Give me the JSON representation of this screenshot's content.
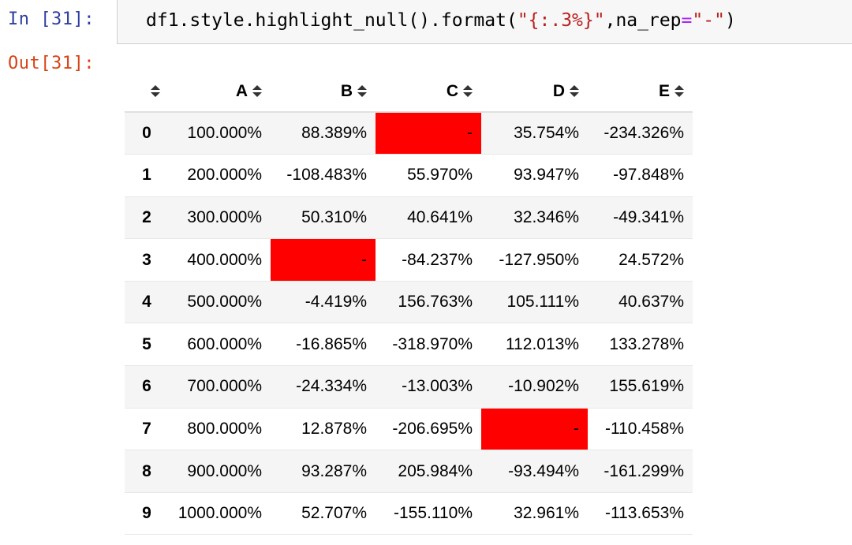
{
  "input_prompt": "In [31]:",
  "output_prompt": "Out[31]:",
  "code": {
    "part1": "df1.style.highlight_null().format(",
    "part2": "\"{:.3%}\"",
    "part3": ",na_rep",
    "part4": "=",
    "part5": "\"-\"",
    "part6": ")"
  },
  "highlight_color": "#ff0000",
  "table": {
    "columns": [
      "A",
      "B",
      "C",
      "D",
      "E"
    ],
    "rows": [
      {
        "index": "0",
        "cells": [
          "100.000%",
          "88.389%",
          "-",
          "35.754%",
          "-234.326%"
        ],
        "null": [
          false,
          false,
          true,
          false,
          false
        ]
      },
      {
        "index": "1",
        "cells": [
          "200.000%",
          "-108.483%",
          "55.970%",
          "93.947%",
          "-97.848%"
        ],
        "null": [
          false,
          false,
          false,
          false,
          false
        ]
      },
      {
        "index": "2",
        "cells": [
          "300.000%",
          "50.310%",
          "40.641%",
          "32.346%",
          "-49.341%"
        ],
        "null": [
          false,
          false,
          false,
          false,
          false
        ]
      },
      {
        "index": "3",
        "cells": [
          "400.000%",
          "-",
          "-84.237%",
          "-127.950%",
          "24.572%"
        ],
        "null": [
          false,
          true,
          false,
          false,
          false
        ]
      },
      {
        "index": "4",
        "cells": [
          "500.000%",
          "-4.419%",
          "156.763%",
          "105.111%",
          "40.637%"
        ],
        "null": [
          false,
          false,
          false,
          false,
          false
        ]
      },
      {
        "index": "5",
        "cells": [
          "600.000%",
          "-16.865%",
          "-318.970%",
          "112.013%",
          "133.278%"
        ],
        "null": [
          false,
          false,
          false,
          false,
          false
        ]
      },
      {
        "index": "6",
        "cells": [
          "700.000%",
          "-24.334%",
          "-13.003%",
          "-10.902%",
          "155.619%"
        ],
        "null": [
          false,
          false,
          false,
          false,
          false
        ]
      },
      {
        "index": "7",
        "cells": [
          "800.000%",
          "12.878%",
          "-206.695%",
          "-",
          "-110.458%"
        ],
        "null": [
          false,
          false,
          false,
          true,
          false
        ]
      },
      {
        "index": "8",
        "cells": [
          "900.000%",
          "93.287%",
          "205.984%",
          "-93.494%",
          "-161.299%"
        ],
        "null": [
          false,
          false,
          false,
          false,
          false
        ]
      },
      {
        "index": "9",
        "cells": [
          "1000.000%",
          "52.707%",
          "-155.110%",
          "32.961%",
          "-113.653%"
        ],
        "null": [
          false,
          false,
          false,
          false,
          false
        ]
      }
    ]
  }
}
